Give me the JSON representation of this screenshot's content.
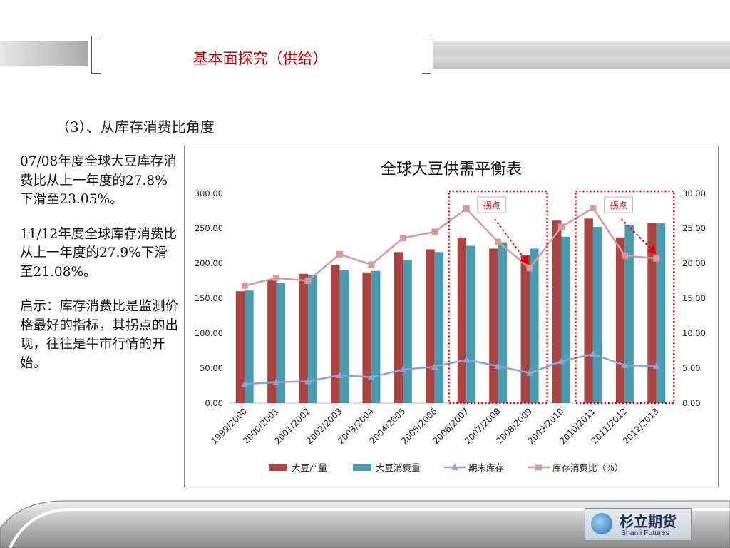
{
  "header": {
    "title": "基本面探究（供给）"
  },
  "section": {
    "subtitle": "（3）、从库存消费比角度"
  },
  "sidebar": {
    "paragraphs": [
      "07/08年度全球大豆库存消费比从上一年度的27.8%下滑至23.05%。",
      "11/12年度全球库存消费比从上一年度的27.9%下滑至21.08%。",
      "启示：库存消费比是监测价格最好的指标，其拐点的出现，往往是牛市行情的开始。"
    ]
  },
  "chart_data": {
    "type": "bar",
    "title": "全球大豆供需平衡表",
    "categories": [
      "1999/2000",
      "2000/2001",
      "2001/2002",
      "2002/2003",
      "2003/2004",
      "2004/2005",
      "2005/2006",
      "2006/2007",
      "2007/2008",
      "2008/2009",
      "2009/2010",
      "2010/2011",
      "2011/2012",
      "2012/2013"
    ],
    "series": [
      {
        "name": "大豆产量",
        "type": "bar",
        "axis": "left",
        "color": "#a94442",
        "values": [
          160,
          176,
          185,
          197,
          187,
          216,
          220,
          237,
          221,
          212,
          261,
          264,
          237,
          258
        ]
      },
      {
        "name": "大豆消费量",
        "type": "bar",
        "axis": "left",
        "color": "#4a9bb0",
        "values": [
          161,
          172,
          183,
          190,
          189,
          205,
          216,
          225,
          230,
          221,
          238,
          252,
          255,
          257
        ]
      },
      {
        "name": "期末库存",
        "type": "line",
        "axis": "left",
        "color": "#8ea4d2",
        "values": [
          27,
          30,
          31,
          40,
          37,
          48,
          52,
          62,
          53,
          43,
          60,
          70,
          54,
          53
        ]
      },
      {
        "name": "库存消费比（%）",
        "type": "line",
        "axis": "right",
        "color": "#d59a9a",
        "values": [
          16.8,
          17.9,
          17.5,
          21.3,
          19.8,
          23.6,
          24.5,
          27.8,
          23.05,
          19.3,
          25.2,
          27.9,
          21.08,
          20.7
        ]
      }
    ],
    "ylim": [
      0,
      300
    ],
    "y_ticks": [
      "0.00",
      "50.00",
      "100.00",
      "150.00",
      "200.00",
      "250.00",
      "300.00"
    ],
    "y2lim": [
      0,
      30
    ],
    "y2_ticks": [
      "0.00",
      "5.00",
      "10.00",
      "15.00",
      "20.00",
      "25.00",
      "30.00"
    ],
    "annotations": [
      {
        "label": "拐点",
        "from_category": "2006/2007",
        "to_category": "2008/2009",
        "color": "#e00000"
      },
      {
        "label": "拐点",
        "from_category": "2010/2011",
        "to_category": "2012/2013",
        "color": "#e00000"
      }
    ],
    "legend_position": "bottom",
    "grid": false
  },
  "footer": {
    "logo_cn": "杉立期货",
    "logo_en": "Shanli Futures"
  }
}
